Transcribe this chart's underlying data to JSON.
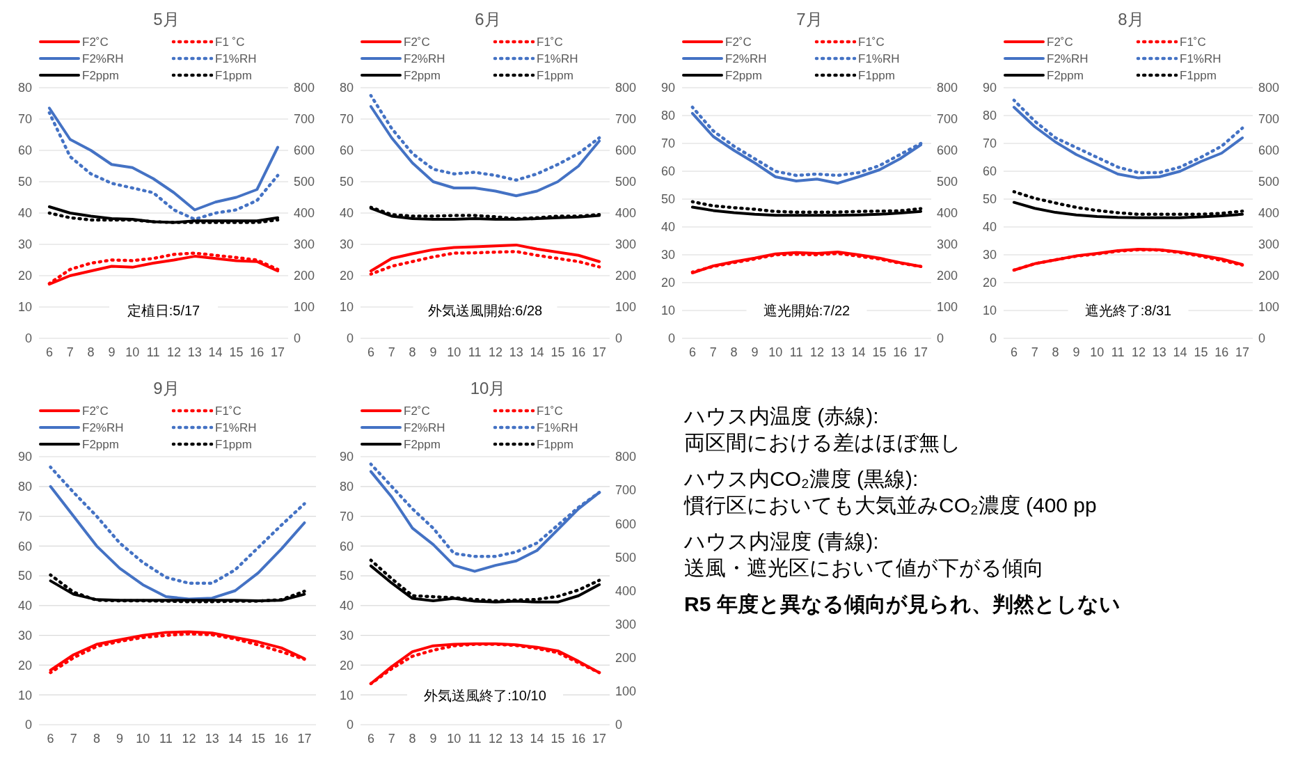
{
  "chart_data": [
    {
      "type": "line",
      "title": "5月",
      "categories": [
        "6",
        "7",
        "8",
        "9",
        "10",
        "11",
        "12",
        "13",
        "14",
        "15",
        "16",
        "17"
      ],
      "ylim": [
        0,
        80
      ],
      "yticks": [
        0,
        10,
        20,
        30,
        40,
        50,
        60,
        70,
        80
      ],
      "y2lim": [
        0,
        800
      ],
      "y2ticks": [
        0,
        100,
        200,
        300,
        400,
        500,
        600,
        700,
        800
      ],
      "grid": "y",
      "legend": "top",
      "marker": "none",
      "annotations": [
        "定植日:5/17"
      ],
      "series": [
        {
          "name": "F2˚C",
          "color": "#ff0000",
          "line_style": "solid",
          "values": [
            17.3,
            20,
            21.5,
            23,
            22.7,
            24,
            25,
            26.2,
            25.5,
            24.8,
            24.5,
            21.5
          ]
        },
        {
          "name": "F1 ˚C",
          "color": "#ff0000",
          "line_style": "dotted",
          "values": [
            17.5,
            22,
            24,
            25,
            24.8,
            25.5,
            26.8,
            27.2,
            26.5,
            25.8,
            25,
            22
          ]
        },
        {
          "name": "F2%RH",
          "color": "#4472c4",
          "line_style": "solid",
          "values": [
            73.5,
            63.5,
            60,
            55.5,
            54.5,
            51,
            46.5,
            41,
            43.5,
            45,
            47.5,
            61
          ]
        },
        {
          "name": "F1%RH",
          "color": "#4472c4",
          "line_style": "dotted",
          "values": [
            72,
            58,
            52.5,
            49.5,
            48,
            46.5,
            41,
            38,
            40,
            41,
            44,
            52
          ]
        },
        {
          "name": "F2ppm",
          "color": "#000000",
          "line_style": "solid",
          "axis": "y2",
          "values": [
            420,
            400,
            390,
            382,
            380,
            372,
            370,
            375,
            375,
            375,
            375,
            385
          ]
        },
        {
          "name": "F1ppm",
          "color": "#000000",
          "line_style": "dotted",
          "axis": "y2",
          "values": [
            400,
            385,
            378,
            378,
            378,
            372,
            370,
            370,
            370,
            370,
            370,
            378
          ]
        }
      ]
    },
    {
      "type": "line",
      "title": "6月",
      "categories": [
        "6",
        "7",
        "8",
        "9",
        "10",
        "11",
        "12",
        "13",
        "14",
        "15",
        "16",
        "17"
      ],
      "ylim": [
        0,
        80
      ],
      "yticks": [
        0,
        10,
        20,
        30,
        40,
        50,
        60,
        70,
        80
      ],
      "y2lim": [
        0,
        800
      ],
      "y2ticks": [
        0,
        100,
        200,
        300,
        400,
        500,
        600,
        700,
        800
      ],
      "grid": "y",
      "legend": "top",
      "marker": "none",
      "annotations": [
        "外気送風開始:6/28"
      ],
      "series": [
        {
          "name": "F2˚C",
          "color": "#ff0000",
          "line_style": "solid",
          "values": [
            21.5,
            25.5,
            27,
            28.3,
            29,
            29.2,
            29.5,
            29.8,
            28.5,
            27.5,
            26.5,
            24.5
          ]
        },
        {
          "name": "F1˚C",
          "color": "#ff0000",
          "line_style": "dotted",
          "values": [
            20.5,
            23,
            24.5,
            26,
            27.2,
            27.3,
            27.5,
            27.7,
            26.5,
            25.5,
            24.5,
            22.8
          ]
        },
        {
          "name": "F2%RH",
          "color": "#4472c4",
          "line_style": "solid",
          "values": [
            74,
            64,
            56,
            50,
            48,
            48,
            47,
            45.5,
            47,
            50,
            55,
            63
          ]
        },
        {
          "name": "F1%RH",
          "color": "#4472c4",
          "line_style": "dotted",
          "values": [
            77.5,
            67,
            59,
            54,
            52.5,
            53,
            52,
            50.5,
            52.5,
            55.5,
            59,
            64
          ]
        },
        {
          "name": "F2ppm",
          "color": "#000000",
          "line_style": "solid",
          "axis": "y2",
          "values": [
            415,
            390,
            382,
            380,
            380,
            382,
            380,
            380,
            382,
            385,
            387,
            392
          ]
        },
        {
          "name": "F1ppm",
          "color": "#000000",
          "line_style": "dotted",
          "axis": "y2",
          "values": [
            418,
            395,
            390,
            390,
            392,
            392,
            388,
            382,
            385,
            390,
            390,
            395
          ]
        }
      ]
    },
    {
      "type": "line",
      "title": "7月",
      "categories": [
        "6",
        "7",
        "8",
        "9",
        "10",
        "11",
        "12",
        "13",
        "14",
        "15",
        "16",
        "17"
      ],
      "ylim": [
        0,
        90
      ],
      "yticks": [
        0,
        10,
        20,
        30,
        40,
        50,
        60,
        70,
        80,
        90
      ],
      "y2lim": [
        0,
        800
      ],
      "y2ticks": [
        0,
        100,
        200,
        300,
        400,
        500,
        600,
        700,
        800
      ],
      "grid": "y",
      "legend": "top",
      "marker": "none",
      "annotations": [
        "遮光開始:7/22"
      ],
      "series": [
        {
          "name": "F2˚C",
          "color": "#ff0000",
          "line_style": "solid",
          "values": [
            23.5,
            26,
            27.5,
            28.8,
            30.3,
            30.8,
            30.5,
            31,
            30,
            28.8,
            27.2,
            25.8
          ]
        },
        {
          "name": "F1˚C",
          "color": "#ff0000",
          "line_style": "dotted",
          "values": [
            23.8,
            25.8,
            27.2,
            28.5,
            30,
            30.2,
            30,
            30.5,
            29.5,
            28.5,
            27,
            25.8
          ]
        },
        {
          "name": "F2%RH",
          "color": "#4472c4",
          "line_style": "solid",
          "values": [
            80.8,
            72.5,
            67.5,
            63,
            58,
            56.5,
            57.2,
            55.7,
            58,
            60.5,
            64.5,
            69.5
          ]
        },
        {
          "name": "F1%RH",
          "color": "#4472c4",
          "line_style": "dotted",
          "values": [
            83,
            74.5,
            69,
            64.5,
            60,
            58.5,
            59,
            58.5,
            59.5,
            62,
            66,
            70
          ]
        },
        {
          "name": "F2ppm",
          "color": "#000000",
          "line_style": "solid",
          "axis": "y2",
          "values": [
            419,
            408,
            401,
            396,
            393,
            393,
            393,
            393,
            394,
            396,
            400,
            405
          ]
        },
        {
          "name": "F1ppm",
          "color": "#000000",
          "line_style": "dotted",
          "axis": "y2",
          "values": [
            436,
            423,
            417,
            412,
            405,
            403,
            403,
            403,
            405,
            406,
            407,
            414
          ]
        }
      ]
    },
    {
      "type": "line",
      "title": "8月",
      "categories": [
        "6",
        "7",
        "8",
        "9",
        "10",
        "11",
        "12",
        "13",
        "14",
        "15",
        "16",
        "17"
      ],
      "ylim": [
        0,
        90
      ],
      "yticks": [
        0,
        10,
        20,
        30,
        40,
        50,
        60,
        70,
        80,
        90
      ],
      "y2lim": [
        0,
        800
      ],
      "y2ticks": [
        0,
        100,
        200,
        300,
        400,
        500,
        600,
        700,
        800
      ],
      "grid": "y",
      "legend": "top",
      "marker": "none",
      "annotations": [
        "遮光終了:8/31"
      ],
      "series": [
        {
          "name": "F2˚C",
          "color": "#ff0000",
          "line_style": "solid",
          "values": [
            24.5,
            26.8,
            28.2,
            29.6,
            30.5,
            31.5,
            32,
            31.8,
            31,
            29.8,
            28.5,
            26.5
          ]
        },
        {
          "name": "F1˚C",
          "color": "#ff0000",
          "line_style": "dotted",
          "values": [
            24.5,
            26.8,
            28.2,
            29.5,
            30.3,
            31.3,
            31.8,
            31.7,
            30.8,
            29.5,
            28,
            26.3
          ]
        },
        {
          "name": "F2%RH",
          "color": "#4472c4",
          "line_style": "solid",
          "values": [
            83,
            76,
            70.5,
            66,
            62.5,
            59,
            57.6,
            58,
            60,
            63.5,
            66.5,
            72
          ]
        },
        {
          "name": "F1%RH",
          "color": "#4472c4",
          "line_style": "dotted",
          "values": [
            85.5,
            78,
            72,
            68.5,
            65,
            61.5,
            59.5,
            59.5,
            61.5,
            65,
            69,
            75.5
          ]
        },
        {
          "name": "F2ppm",
          "color": "#000000",
          "line_style": "solid",
          "axis": "y2",
          "values": [
            434,
            415,
            402,
            394,
            389,
            386,
            385,
            385,
            385,
            388,
            391,
            396
          ]
        },
        {
          "name": "F1ppm",
          "color": "#000000",
          "line_style": "dotted",
          "axis": "y2",
          "values": [
            468,
            447,
            432,
            418,
            408,
            401,
            396,
            396,
            396,
            396,
            399,
            406
          ]
        }
      ]
    },
    {
      "type": "line",
      "title": "9月",
      "categories": [
        "6",
        "7",
        "8",
        "9",
        "10",
        "11",
        "12",
        "13",
        "14",
        "15",
        "16",
        "17"
      ],
      "ylim": [
        0,
        90
      ],
      "yticks": [
        0,
        10,
        20,
        30,
        40,
        50,
        60,
        70,
        80,
        90
      ],
      "grid": "y",
      "legend": "top",
      "marker": "none",
      "series": [
        {
          "name": "F2˚C",
          "color": "#ff0000",
          "line_style": "solid",
          "values": [
            18.3,
            23.5,
            27,
            28.5,
            30,
            31,
            31.2,
            30.8,
            29.3,
            27.8,
            25.8,
            22.2
          ]
        },
        {
          "name": "F1˚C",
          "color": "#ff0000",
          "line_style": "dotted",
          "values": [
            17.5,
            22.5,
            26.3,
            28,
            29.3,
            30,
            30.5,
            30.2,
            28.8,
            26.8,
            24.5,
            22
          ]
        },
        {
          "name": "F2%RH",
          "color": "#4472c4",
          "line_style": "solid",
          "values": [
            80,
            70,
            60,
            52.5,
            47,
            43,
            42.2,
            42.5,
            45,
            51,
            59,
            67.8
          ]
        },
        {
          "name": "F1%RH",
          "color": "#4472c4",
          "line_style": "dotted",
          "values": [
            86.5,
            78,
            70,
            61,
            54.5,
            49.5,
            47.5,
            47.5,
            52,
            59.5,
            67,
            74.2
          ]
        },
        {
          "name": "F2ppm",
          "color": "#000000",
          "line_style": "solid",
          "values": [
            48.3,
            43.8,
            42,
            41.8,
            41.8,
            41.8,
            41.8,
            41.8,
            41.8,
            41.6,
            41.8,
            43.8
          ]
        },
        {
          "name": "F1ppm",
          "color": "#000000",
          "line_style": "dotted",
          "values": [
            50.3,
            44.5,
            41.8,
            41.6,
            41.6,
            41.5,
            41.3,
            41.3,
            41.5,
            41.5,
            42,
            44.8
          ]
        }
      ]
    },
    {
      "type": "line",
      "title": "10月",
      "categories": [
        "6",
        "7",
        "8",
        "9",
        "10",
        "11",
        "12",
        "13",
        "14",
        "15",
        "16",
        "17"
      ],
      "ylim": [
        0,
        90
      ],
      "yticks": [
        0,
        10,
        20,
        30,
        40,
        50,
        60,
        70,
        80,
        90
      ],
      "y2lim": [
        0,
        800
      ],
      "y2ticks": [
        0,
        100,
        200,
        300,
        400,
        500,
        600,
        700,
        800
      ],
      "grid": "y",
      "legend": "top",
      "marker": "none",
      "annotations": [
        "外気送風終了:10/10"
      ],
      "series": [
        {
          "name": "F2˚C",
          "color": "#ff0000",
          "line_style": "solid",
          "values": [
            13.8,
            19.5,
            24.5,
            26.5,
            27,
            27.2,
            27.2,
            26.8,
            26,
            24.8,
            21.3,
            17.5
          ]
        },
        {
          "name": "F1˚C",
          "color": "#ff0000",
          "line_style": "dotted",
          "values": [
            13.8,
            18.8,
            23,
            25,
            26.5,
            27,
            27,
            26.6,
            25.6,
            24.2,
            20.8,
            17.5
          ]
        },
        {
          "name": "F2%RH",
          "color": "#4472c4",
          "line_style": "solid",
          "values": [
            85,
            76.5,
            66,
            60.5,
            53.5,
            51.5,
            53.5,
            55,
            58.5,
            65.5,
            72.5,
            78
          ]
        },
        {
          "name": "F1%RH",
          "color": "#4472c4",
          "line_style": "dotted",
          "values": [
            87.5,
            80,
            72.5,
            66,
            57.5,
            56.5,
            56.5,
            58,
            61,
            67,
            73,
            78
          ]
        },
        {
          "name": "F2ppm",
          "color": "#000000",
          "line_style": "solid",
          "axis": "y2",
          "values": [
            474,
            423,
            377,
            370,
            377,
            369,
            366,
            369,
            366,
            366,
            385,
            418
          ]
        },
        {
          "name": "F1ppm",
          "color": "#000000",
          "line_style": "dotted",
          "axis": "y2",
          "values": [
            491,
            436,
            385,
            382,
            379,
            374,
            370,
            372,
            374,
            383,
            402,
            431
          ]
        }
      ]
    },
    {
      "type": "other",
      "annotations": [
        "ハウス内温度 (赤線):",
        "両区間における差はほぼ無し",
        "ハウス内CO₂濃度 (黒線):",
        "慣行区においても大気並みCO₂濃度 (400 pp",
        "ハウス内湿度 (青線):",
        "送風・遮光区において値が下がる傾向",
        "R5 年度と異なる傾向が見られ、判然としない"
      ]
    }
  ]
}
